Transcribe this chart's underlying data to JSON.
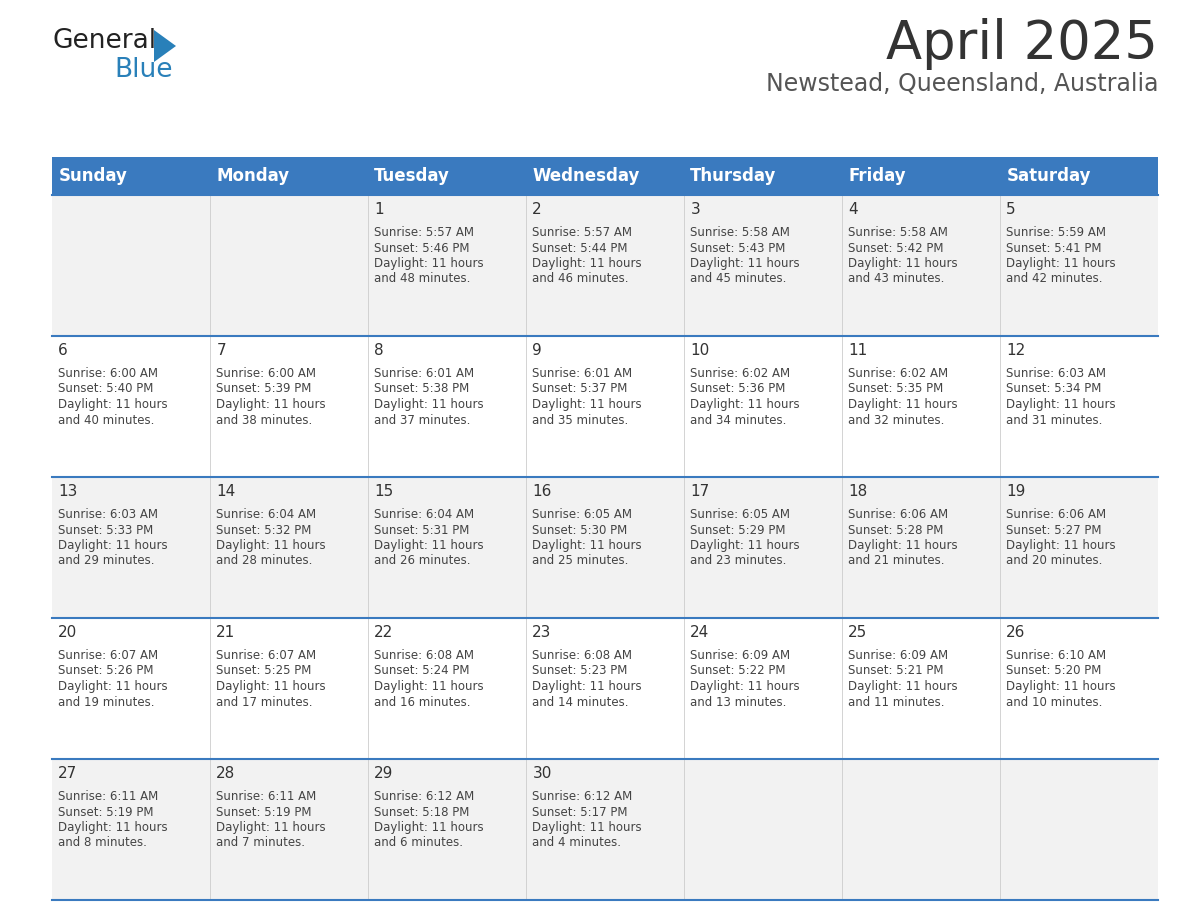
{
  "title": "April 2025",
  "subtitle": "Newstead, Queensland, Australia",
  "header_bg": "#3a7abf",
  "header_text_color": "#ffffff",
  "day_headers": [
    "Sunday",
    "Monday",
    "Tuesday",
    "Wednesday",
    "Thursday",
    "Friday",
    "Saturday"
  ],
  "row_bg_odd": "#f2f2f2",
  "row_bg_even": "#ffffff",
  "cell_text_color": "#444444",
  "day_num_color": "#333333",
  "divider_color": "#3a7abf",
  "logo_general_color": "#222222",
  "logo_blue_color": "#2980b9",
  "title_color": "#333333",
  "subtitle_color": "#555555",
  "title_fontsize": 38,
  "subtitle_fontsize": 17,
  "header_fontsize": 12,
  "date_fontsize": 11,
  "cell_fontsize": 8.5,
  "weeks": [
    {
      "days": [
        {
          "date": "",
          "sunrise": "",
          "sunset": "",
          "daylight": ""
        },
        {
          "date": "",
          "sunrise": "",
          "sunset": "",
          "daylight": ""
        },
        {
          "date": "1",
          "sunrise": "5:57 AM",
          "sunset": "5:46 PM",
          "daylight": "11 hours and 48 minutes."
        },
        {
          "date": "2",
          "sunrise": "5:57 AM",
          "sunset": "5:44 PM",
          "daylight": "11 hours and 46 minutes."
        },
        {
          "date": "3",
          "sunrise": "5:58 AM",
          "sunset": "5:43 PM",
          "daylight": "11 hours and 45 minutes."
        },
        {
          "date": "4",
          "sunrise": "5:58 AM",
          "sunset": "5:42 PM",
          "daylight": "11 hours and 43 minutes."
        },
        {
          "date": "5",
          "sunrise": "5:59 AM",
          "sunset": "5:41 PM",
          "daylight": "11 hours and 42 minutes."
        }
      ]
    },
    {
      "days": [
        {
          "date": "6",
          "sunrise": "6:00 AM",
          "sunset": "5:40 PM",
          "daylight": "11 hours and 40 minutes."
        },
        {
          "date": "7",
          "sunrise": "6:00 AM",
          "sunset": "5:39 PM",
          "daylight": "11 hours and 38 minutes."
        },
        {
          "date": "8",
          "sunrise": "6:01 AM",
          "sunset": "5:38 PM",
          "daylight": "11 hours and 37 minutes."
        },
        {
          "date": "9",
          "sunrise": "6:01 AM",
          "sunset": "5:37 PM",
          "daylight": "11 hours and 35 minutes."
        },
        {
          "date": "10",
          "sunrise": "6:02 AM",
          "sunset": "5:36 PM",
          "daylight": "11 hours and 34 minutes."
        },
        {
          "date": "11",
          "sunrise": "6:02 AM",
          "sunset": "5:35 PM",
          "daylight": "11 hours and 32 minutes."
        },
        {
          "date": "12",
          "sunrise": "6:03 AM",
          "sunset": "5:34 PM",
          "daylight": "11 hours and 31 minutes."
        }
      ]
    },
    {
      "days": [
        {
          "date": "13",
          "sunrise": "6:03 AM",
          "sunset": "5:33 PM",
          "daylight": "11 hours and 29 minutes."
        },
        {
          "date": "14",
          "sunrise": "6:04 AM",
          "sunset": "5:32 PM",
          "daylight": "11 hours and 28 minutes."
        },
        {
          "date": "15",
          "sunrise": "6:04 AM",
          "sunset": "5:31 PM",
          "daylight": "11 hours and 26 minutes."
        },
        {
          "date": "16",
          "sunrise": "6:05 AM",
          "sunset": "5:30 PM",
          "daylight": "11 hours and 25 minutes."
        },
        {
          "date": "17",
          "sunrise": "6:05 AM",
          "sunset": "5:29 PM",
          "daylight": "11 hours and 23 minutes."
        },
        {
          "date": "18",
          "sunrise": "6:06 AM",
          "sunset": "5:28 PM",
          "daylight": "11 hours and 21 minutes."
        },
        {
          "date": "19",
          "sunrise": "6:06 AM",
          "sunset": "5:27 PM",
          "daylight": "11 hours and 20 minutes."
        }
      ]
    },
    {
      "days": [
        {
          "date": "20",
          "sunrise": "6:07 AM",
          "sunset": "5:26 PM",
          "daylight": "11 hours and 19 minutes."
        },
        {
          "date": "21",
          "sunrise": "6:07 AM",
          "sunset": "5:25 PM",
          "daylight": "11 hours and 17 minutes."
        },
        {
          "date": "22",
          "sunrise": "6:08 AM",
          "sunset": "5:24 PM",
          "daylight": "11 hours and 16 minutes."
        },
        {
          "date": "23",
          "sunrise": "6:08 AM",
          "sunset": "5:23 PM",
          "daylight": "11 hours and 14 minutes."
        },
        {
          "date": "24",
          "sunrise": "6:09 AM",
          "sunset": "5:22 PM",
          "daylight": "11 hours and 13 minutes."
        },
        {
          "date": "25",
          "sunrise": "6:09 AM",
          "sunset": "5:21 PM",
          "daylight": "11 hours and 11 minutes."
        },
        {
          "date": "26",
          "sunrise": "6:10 AM",
          "sunset": "5:20 PM",
          "daylight": "11 hours and 10 minutes."
        }
      ]
    },
    {
      "days": [
        {
          "date": "27",
          "sunrise": "6:11 AM",
          "sunset": "5:19 PM",
          "daylight": "11 hours and 8 minutes."
        },
        {
          "date": "28",
          "sunrise": "6:11 AM",
          "sunset": "5:19 PM",
          "daylight": "11 hours and 7 minutes."
        },
        {
          "date": "29",
          "sunrise": "6:12 AM",
          "sunset": "5:18 PM",
          "daylight": "11 hours and 6 minutes."
        },
        {
          "date": "30",
          "sunrise": "6:12 AM",
          "sunset": "5:17 PM",
          "daylight": "11 hours and 4 minutes."
        },
        {
          "date": "",
          "sunrise": "",
          "sunset": "",
          "daylight": ""
        },
        {
          "date": "",
          "sunrise": "",
          "sunset": "",
          "daylight": ""
        },
        {
          "date": "",
          "sunrise": "",
          "sunset": "",
          "daylight": ""
        }
      ]
    }
  ]
}
